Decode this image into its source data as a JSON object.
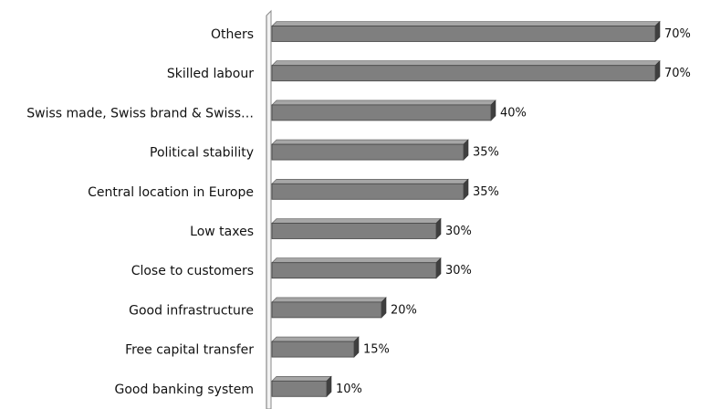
{
  "chart_data": {
    "type": "bar",
    "orientation": "horizontal",
    "categories": [
      "Others",
      "Skilled labour",
      "Swiss made, Swiss brand & Swiss…",
      "Political stability",
      "Central location in Europe",
      "Low taxes",
      "Close to customers",
      "Good infrastructure",
      "Free capital transfer",
      "Good banking system"
    ],
    "values": [
      70,
      70,
      40,
      35,
      35,
      30,
      30,
      20,
      15,
      10
    ],
    "value_labels": [
      "70%",
      "70%",
      "40%",
      "35%",
      "35%",
      "30%",
      "30%",
      "20%",
      "15%",
      "10%"
    ],
    "xlim": [
      0,
      100
    ],
    "grid": false,
    "bar_color": "#7f7f7f",
    "bar_edge_color": "#444444",
    "style": "3d"
  }
}
